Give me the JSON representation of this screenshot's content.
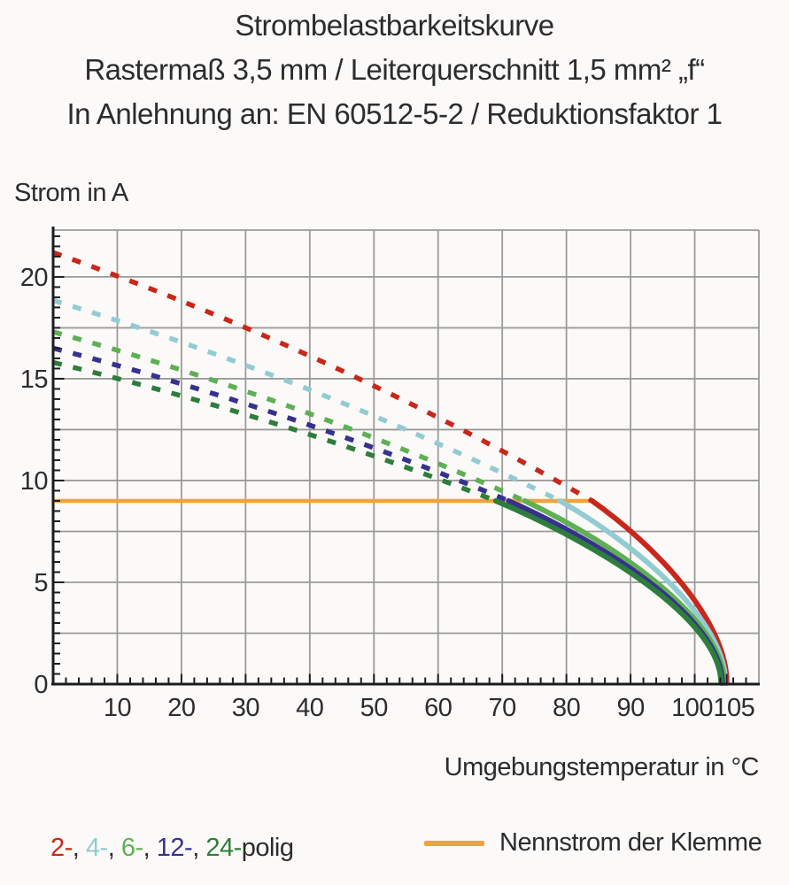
{
  "title": {
    "line1": "Strombelastbarkeitskurve",
    "line2": "Rastermaß 3,5 mm / Leiterquerschnitt 1,5 mm² „f“",
    "line3": "In Anlehnung an: EN 60512-5-2 / Reduktionsfaktor 1"
  },
  "chart_data": {
    "type": "line",
    "ylabel": "Strom in A",
    "xlabel": "Umgebungstemperatur in °C",
    "xlim": [
      0,
      110
    ],
    "ylim": [
      0,
      22.3
    ],
    "x_major_ticks": [
      10,
      20,
      30,
      40,
      50,
      60,
      70,
      80,
      90,
      100,
      105
    ],
    "x_minor_step": 2,
    "y_major_ticks": [
      0,
      5,
      10,
      15,
      20
    ],
    "y_minor_step": 0.5,
    "x_gridlines": [
      10,
      20,
      30,
      40,
      50,
      60,
      70,
      80,
      90,
      100
    ],
    "y_gridlines": [
      2.5,
      5,
      7.5,
      10,
      12.5,
      15,
      17.5,
      20
    ],
    "grid": true,
    "grid_color": "#9b9b9b",
    "axis_color": "#1c1c1e",
    "rated_current": {
      "label": "Nennstrom der Klemme",
      "value_a": 9,
      "temp_start": 0,
      "temp_end": 84,
      "color": "#F2A23C"
    },
    "series": [
      {
        "name": "2-polig",
        "color": "#C8271B",
        "style": "dashed-then-solid",
        "current_at_0c_a": 21.2,
        "meets_rated_current_at_c": 84,
        "rated_current_a": 9,
        "zero_current_at_c": 105.0
      },
      {
        "name": "4-polig",
        "color": "#93CBD3",
        "style": "dashed-then-solid",
        "current_at_0c_a": 18.85,
        "meets_rated_current_at_c": 79,
        "rated_current_a": 9,
        "zero_current_at_c": 104.8
      },
      {
        "name": "6-polig",
        "color": "#5FAF55",
        "style": "dashed-then-solid",
        "current_at_0c_a": 17.3,
        "meets_rated_current_at_c": 73.5,
        "rated_current_a": 9,
        "zero_current_at_c": 104.6
      },
      {
        "name": "12-polig",
        "color": "#37318E",
        "style": "dashed-then-solid",
        "current_at_0c_a": 16.5,
        "meets_rated_current_at_c": 71,
        "rated_current_a": 9,
        "zero_current_at_c": 104.3
      },
      {
        "name": "24-polig",
        "color": "#2E7D3C",
        "style": "dashed-then-solid",
        "current_at_0c_a": 15.8,
        "meets_rated_current_at_c": 69,
        "rated_current_a": 9,
        "zero_current_at_c": 104.1
      }
    ],
    "legend_position": "bottom"
  },
  "legend": {
    "poles": [
      {
        "label": "2-",
        "color": "#C8271B"
      },
      {
        "label": "4-",
        "color": "#93CBD3"
      },
      {
        "label": "6-",
        "color": "#5FAF55"
      },
      {
        "label": "12-",
        "color": "#37318E"
      },
      {
        "label": "24-",
        "color": "#2E7D3C"
      }
    ],
    "separator": ", ",
    "suffix": "polig",
    "rated_label": "Nennstrom der Klemme"
  }
}
